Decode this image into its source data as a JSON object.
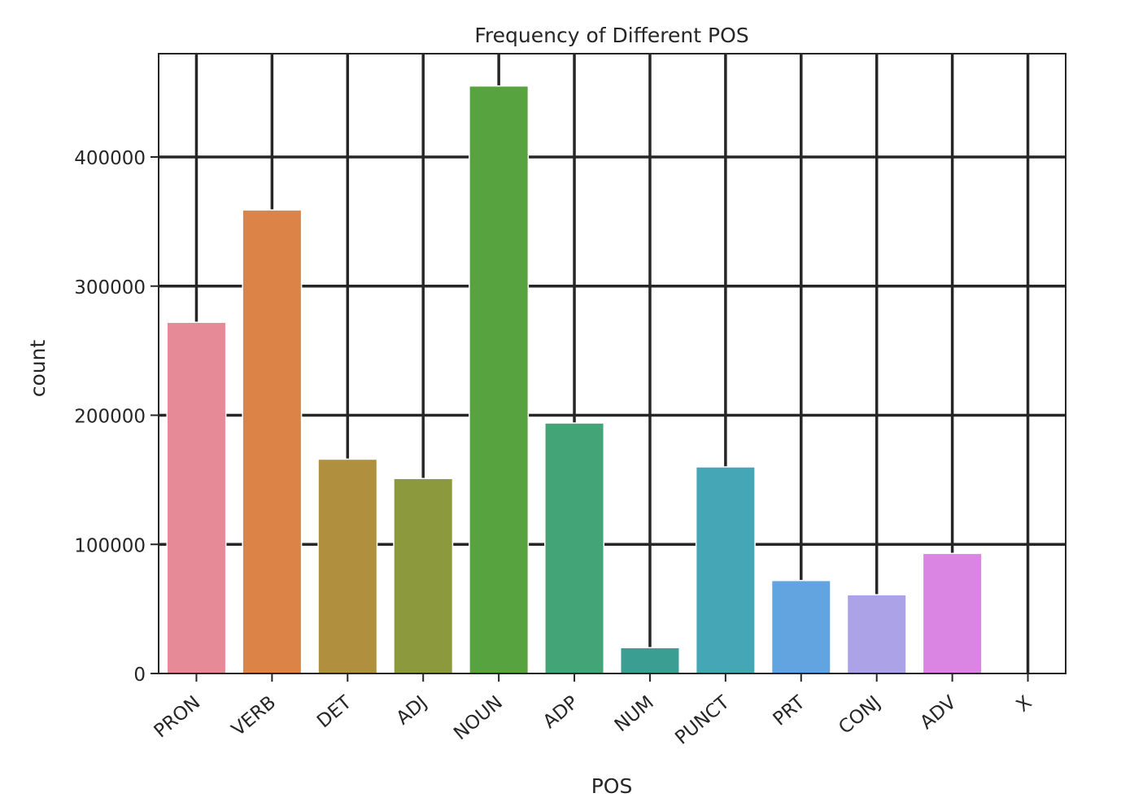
{
  "chart_data": {
    "type": "bar",
    "title": "Frequency of Different POS",
    "xlabel": "POS",
    "ylabel": "count",
    "categories": [
      "PRON",
      "VERB",
      "DET",
      "ADJ",
      "NOUN",
      "ADP",
      "NUM",
      "PUNCT",
      "PRT",
      "CONJ",
      "ADV",
      "X"
    ],
    "values": [
      272000,
      359000,
      166000,
      151000,
      455000,
      194000,
      20000,
      160000,
      72000,
      61000,
      93000,
      0
    ],
    "colors": [
      "#e78a97",
      "#dc8347",
      "#b08f3f",
      "#8c9a3d",
      "#56a33f",
      "#42a477",
      "#3a9e93",
      "#45a6b6",
      "#62a4e0",
      "#aba2e8",
      "#da84e3",
      "#e68aa9"
    ],
    "yticks": [
      0,
      100000,
      200000,
      300000,
      400000
    ],
    "ytick_labels": [
      "0",
      "100000",
      "200000",
      "300000",
      "400000"
    ],
    "ylim": [
      0,
      480000
    ],
    "grid": true
  }
}
